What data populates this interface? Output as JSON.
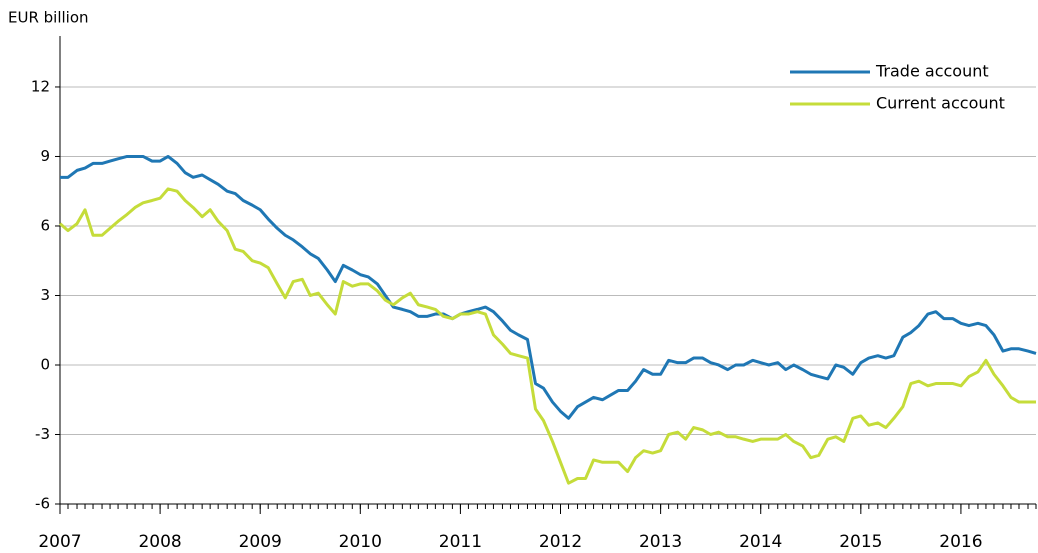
{
  "chart_data": {
    "type": "line",
    "y_label": "EUR billion",
    "x": [
      2007.0,
      2007.08,
      2007.17,
      2007.25,
      2007.33,
      2007.42,
      2007.5,
      2007.58,
      2007.67,
      2007.75,
      2007.83,
      2007.92,
      2008.0,
      2008.08,
      2008.17,
      2008.25,
      2008.33,
      2008.42,
      2008.5,
      2008.58,
      2008.67,
      2008.75,
      2008.83,
      2008.92,
      2009.0,
      2009.08,
      2009.17,
      2009.25,
      2009.33,
      2009.42,
      2009.5,
      2009.58,
      2009.67,
      2009.75,
      2009.83,
      2009.92,
      2010.0,
      2010.08,
      2010.17,
      2010.25,
      2010.33,
      2010.42,
      2010.5,
      2010.58,
      2010.67,
      2010.75,
      2010.83,
      2010.92,
      2011.0,
      2011.08,
      2011.17,
      2011.25,
      2011.33,
      2011.42,
      2011.5,
      2011.58,
      2011.67,
      2011.75,
      2011.83,
      2011.92,
      2012.0,
      2012.08,
      2012.17,
      2012.25,
      2012.33,
      2012.42,
      2012.5,
      2012.58,
      2012.67,
      2012.75,
      2012.83,
      2012.92,
      2013.0,
      2013.08,
      2013.17,
      2013.25,
      2013.33,
      2013.42,
      2013.5,
      2013.58,
      2013.67,
      2013.75,
      2013.83,
      2013.92,
      2014.0,
      2014.08,
      2014.17,
      2014.25,
      2014.33,
      2014.42,
      2014.5,
      2014.58,
      2014.67,
      2014.75,
      2014.83,
      2014.92,
      2015.0,
      2015.08,
      2015.17,
      2015.25,
      2015.33,
      2015.42,
      2015.5,
      2015.58,
      2015.67,
      2015.75,
      2015.83,
      2015.92,
      2016.0,
      2016.08,
      2016.17,
      2016.25,
      2016.33,
      2016.42,
      2016.5,
      2016.58,
      2016.67,
      2016.75
    ],
    "series": [
      {
        "name": "Trade account",
        "color": "#1f77b4",
        "values": [
          8.1,
          8.1,
          8.4,
          8.5,
          8.7,
          8.7,
          8.8,
          8.9,
          9.0,
          9.0,
          9.0,
          8.8,
          8.8,
          9.0,
          8.7,
          8.3,
          8.1,
          8.2,
          8.0,
          7.8,
          7.5,
          7.4,
          7.1,
          6.9,
          6.7,
          6.3,
          5.9,
          5.6,
          5.4,
          5.1,
          4.8,
          4.6,
          4.1,
          3.6,
          4.3,
          4.1,
          3.9,
          3.8,
          3.5,
          3.0,
          2.5,
          2.4,
          2.3,
          2.1,
          2.1,
          2.2,
          2.2,
          2.0,
          2.2,
          2.3,
          2.4,
          2.5,
          2.3,
          1.9,
          1.5,
          1.3,
          1.1,
          -0.8,
          -1.0,
          -1.6,
          -2.0,
          -2.3,
          -1.8,
          -1.6,
          -1.4,
          -1.5,
          -1.3,
          -1.1,
          -1.1,
          -0.7,
          -0.2,
          -0.4,
          -0.4,
          0.2,
          0.1,
          0.1,
          0.3,
          0.3,
          0.1,
          0.0,
          -0.2,
          0.0,
          0.0,
          0.2,
          0.1,
          0.0,
          0.1,
          -0.2,
          0.0,
          -0.2,
          -0.4,
          -0.5,
          -0.6,
          0.0,
          -0.1,
          -0.4,
          0.1,
          0.3,
          0.4,
          0.3,
          0.4,
          1.2,
          1.4,
          1.7,
          2.2,
          2.3,
          2.0,
          2.0,
          1.8,
          1.7,
          1.8,
          1.7,
          1.3,
          0.6,
          0.7,
          0.7,
          0.6,
          0.5
        ]
      },
      {
        "name": "Current account",
        "color": "#c5dc3a",
        "values": [
          6.1,
          5.8,
          6.1,
          6.7,
          5.6,
          5.6,
          5.9,
          6.2,
          6.5,
          6.8,
          7.0,
          7.1,
          7.2,
          7.6,
          7.5,
          7.1,
          6.8,
          6.4,
          6.7,
          6.2,
          5.8,
          5.0,
          4.9,
          4.5,
          4.4,
          4.2,
          3.5,
          2.9,
          3.6,
          3.7,
          3.0,
          3.1,
          2.6,
          2.2,
          3.6,
          3.4,
          3.5,
          3.5,
          3.2,
          2.8,
          2.6,
          2.9,
          3.1,
          2.6,
          2.5,
          2.4,
          2.1,
          2.0,
          2.2,
          2.2,
          2.3,
          2.2,
          1.3,
          0.9,
          0.5,
          0.4,
          0.3,
          -1.9,
          -2.4,
          -3.3,
          -4.2,
          -5.1,
          -4.9,
          -4.9,
          -4.1,
          -4.2,
          -4.2,
          -4.2,
          -4.6,
          -4.0,
          -3.7,
          -3.8,
          -3.7,
          -3.0,
          -2.9,
          -3.2,
          -2.7,
          -2.8,
          -3.0,
          -2.9,
          -3.1,
          -3.1,
          -3.2,
          -3.3,
          -3.2,
          -3.2,
          -3.2,
          -3.0,
          -3.3,
          -3.5,
          -4.0,
          -3.9,
          -3.2,
          -3.1,
          -3.3,
          -2.3,
          -2.2,
          -2.6,
          -2.5,
          -2.7,
          -2.3,
          -1.8,
          -0.8,
          -0.7,
          -0.9,
          -0.8,
          -0.8,
          -0.8,
          -0.9,
          -0.5,
          -0.3,
          0.2,
          -0.4,
          -0.9,
          -1.4,
          -1.6,
          -1.6,
          -1.6
        ]
      }
    ],
    "xlim": [
      2007,
      2016.75
    ],
    "xticks": [
      2007,
      2008,
      2009,
      2010,
      2011,
      2012,
      2013,
      2014,
      2015,
      2016
    ],
    "ylim": [
      -6,
      14.2
    ],
    "yticks": [
      -6,
      -3,
      0,
      3,
      6,
      9,
      12
    ],
    "grid": true,
    "legend": "upper right"
  }
}
